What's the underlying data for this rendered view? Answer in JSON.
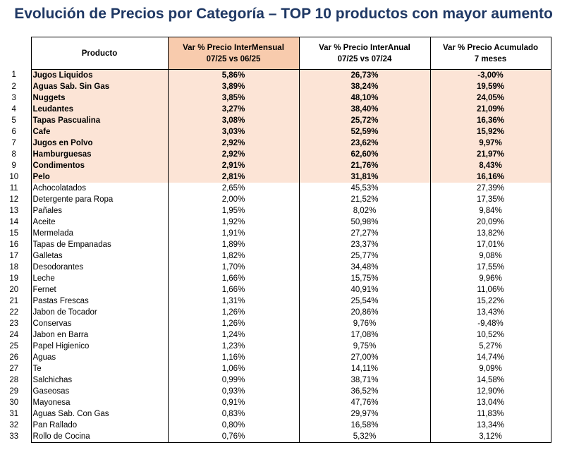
{
  "title": "Evolución de Precios por Categoría – TOP 10 productos con mayor aumento",
  "headers": {
    "producto": "Producto",
    "intermensual_line1": "Var % Precio InterMensual",
    "intermensual_line2": "07/25 vs 06/25",
    "interanual_line1": "Var % Precio InterAnual",
    "interanual_line2": "07/25 vs 07/24",
    "acumulado_line1": "Var % Precio Acumulado",
    "acumulado_line2": "7 meses"
  },
  "colors": {
    "title": "#1f3864",
    "header_highlight": "#f8cbad",
    "top10_row": "#fce4d6"
  },
  "top_count": 10,
  "rows": [
    {
      "n": "1",
      "producto": "Jugos Liquidos",
      "mensual": "5,86%",
      "anual": "26,73%",
      "acumulado": "-3,00%"
    },
    {
      "n": "2",
      "producto": "Aguas Sab. Sin Gas",
      "mensual": "3,89%",
      "anual": "38,24%",
      "acumulado": "19,59%"
    },
    {
      "n": "3",
      "producto": "Nuggets",
      "mensual": "3,85%",
      "anual": "48,10%",
      "acumulado": "24,05%"
    },
    {
      "n": "4",
      "producto": "Leudantes",
      "mensual": "3,27%",
      "anual": "38,40%",
      "acumulado": "21,09%"
    },
    {
      "n": "5",
      "producto": "Tapas Pascualina",
      "mensual": "3,08%",
      "anual": "25,72%",
      "acumulado": "16,36%"
    },
    {
      "n": "6",
      "producto": "Cafe",
      "mensual": "3,03%",
      "anual": "52,59%",
      "acumulado": "15,92%"
    },
    {
      "n": "7",
      "producto": "Jugos en Polvo",
      "mensual": "2,92%",
      "anual": "23,62%",
      "acumulado": "9,97%"
    },
    {
      "n": "8",
      "producto": "Hamburguesas",
      "mensual": "2,92%",
      "anual": "62,60%",
      "acumulado": "21,97%"
    },
    {
      "n": "9",
      "producto": "Condimentos",
      "mensual": "2,91%",
      "anual": "21,76%",
      "acumulado": "8,43%"
    },
    {
      "n": "10",
      "producto": "Pelo",
      "mensual": "2,81%",
      "anual": "31,81%",
      "acumulado": "16,16%"
    },
    {
      "n": "11",
      "producto": "Achocolatados",
      "mensual": "2,65%",
      "anual": "45,53%",
      "acumulado": "27,39%"
    },
    {
      "n": "12",
      "producto": "Detergente para Ropa",
      "mensual": "2,00%",
      "anual": "21,52%",
      "acumulado": "17,35%"
    },
    {
      "n": "13",
      "producto": "Pañales",
      "mensual": "1,95%",
      "anual": "8,02%",
      "acumulado": "9,84%"
    },
    {
      "n": "14",
      "producto": "Aceite",
      "mensual": "1,92%",
      "anual": "50,98%",
      "acumulado": "20,09%"
    },
    {
      "n": "15",
      "producto": "Mermelada",
      "mensual": "1,91%",
      "anual": "27,27%",
      "acumulado": "13,82%"
    },
    {
      "n": "16",
      "producto": "Tapas de Empanadas",
      "mensual": "1,89%",
      "anual": "23,37%",
      "acumulado": "17,01%"
    },
    {
      "n": "17",
      "producto": "Galletas",
      "mensual": "1,82%",
      "anual": "25,77%",
      "acumulado": "9,08%"
    },
    {
      "n": "18",
      "producto": "Desodorantes",
      "mensual": "1,70%",
      "anual": "34,48%",
      "acumulado": "17,55%"
    },
    {
      "n": "19",
      "producto": "Leche",
      "mensual": "1,66%",
      "anual": "15,75%",
      "acumulado": "9,96%"
    },
    {
      "n": "20",
      "producto": "Fernet",
      "mensual": "1,66%",
      "anual": "40,91%",
      "acumulado": "11,06%"
    },
    {
      "n": "21",
      "producto": "Pastas Frescas",
      "mensual": "1,31%",
      "anual": "25,54%",
      "acumulado": "15,22%"
    },
    {
      "n": "22",
      "producto": "Jabon de Tocador",
      "mensual": "1,26%",
      "anual": "20,86%",
      "acumulado": "13,43%"
    },
    {
      "n": "23",
      "producto": "Conservas",
      "mensual": "1,26%",
      "anual": "9,76%",
      "acumulado": "-9,48%"
    },
    {
      "n": "24",
      "producto": "Jabon en Barra",
      "mensual": "1,24%",
      "anual": "17,08%",
      "acumulado": "10,52%"
    },
    {
      "n": "25",
      "producto": "Papel Higienico",
      "mensual": "1,23%",
      "anual": "9,75%",
      "acumulado": "5,27%"
    },
    {
      "n": "26",
      "producto": "Aguas",
      "mensual": "1,16%",
      "anual": "27,00%",
      "acumulado": "14,74%"
    },
    {
      "n": "27",
      "producto": "Te",
      "mensual": "1,06%",
      "anual": "14,11%",
      "acumulado": "9,09%"
    },
    {
      "n": "28",
      "producto": "Salchichas",
      "mensual": "0,99%",
      "anual": "38,71%",
      "acumulado": "14,58%"
    },
    {
      "n": "29",
      "producto": "Gaseosas",
      "mensual": "0,93%",
      "anual": "36,52%",
      "acumulado": "12,90%"
    },
    {
      "n": "30",
      "producto": "Mayonesa",
      "mensual": "0,91%",
      "anual": "47,76%",
      "acumulado": "13,04%"
    },
    {
      "n": "31",
      "producto": "Aguas Sab. Con Gas",
      "mensual": "0,83%",
      "anual": "29,97%",
      "acumulado": "11,83%"
    },
    {
      "n": "32",
      "producto": "Pan Rallado",
      "mensual": "0,80%",
      "anual": "16,58%",
      "acumulado": "13,34%"
    },
    {
      "n": "33",
      "producto": "Rollo de Cocina",
      "mensual": "0,76%",
      "anual": "5,32%",
      "acumulado": "3,12%"
    }
  ]
}
